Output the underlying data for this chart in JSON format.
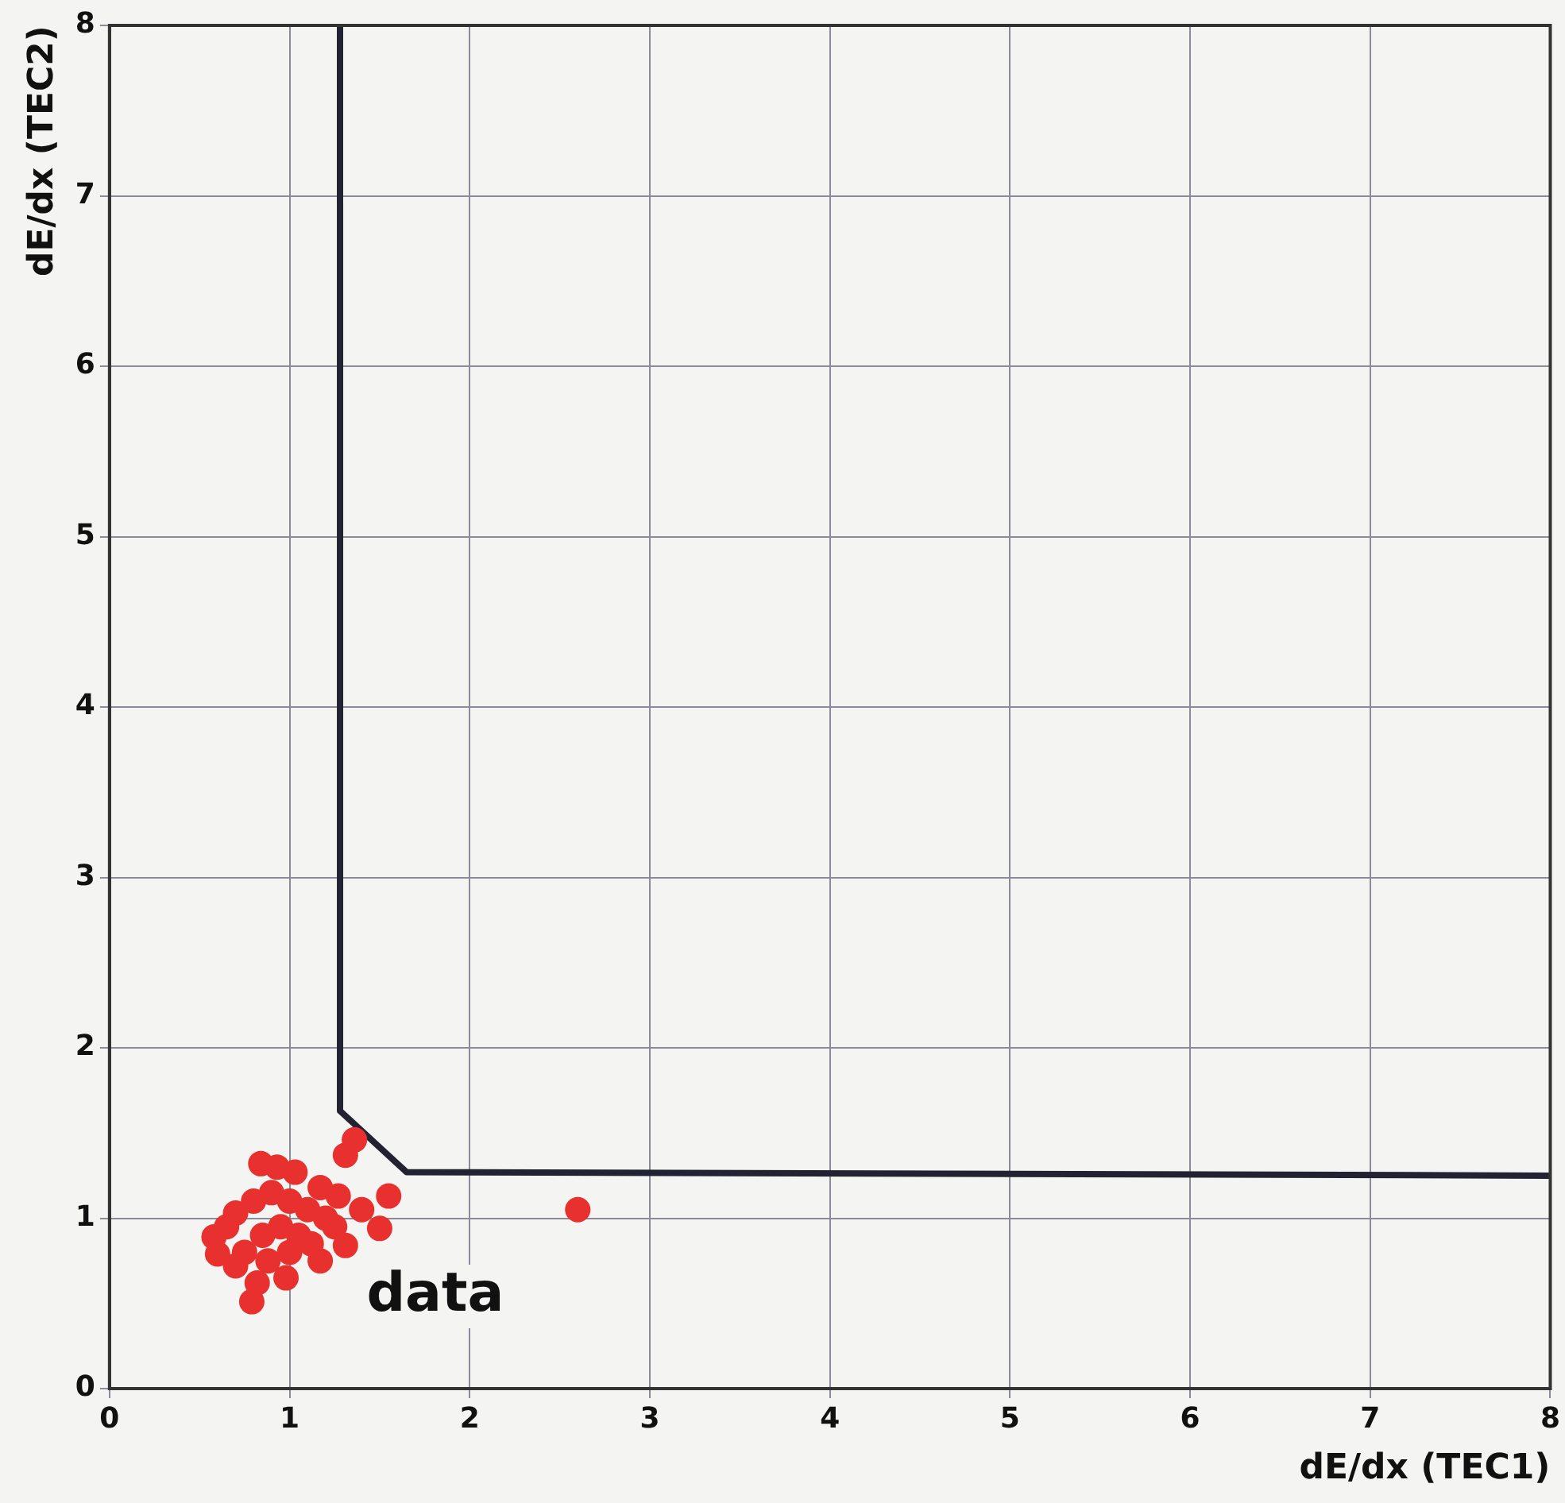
{
  "chart_data": {
    "type": "scatter",
    "xlabel": "dE/dx (TEC1)",
    "ylabel": "dE/dx (TEC2)",
    "xlim": [
      0,
      8
    ],
    "ylim": [
      0,
      8
    ],
    "xticks": [
      0,
      1,
      2,
      3,
      4,
      5,
      6,
      7,
      8
    ],
    "yticks": [
      0,
      1,
      2,
      3,
      4,
      5,
      6,
      7,
      8
    ],
    "grid": true,
    "series": [
      {
        "marker": "circle",
        "color": "#e8302e",
        "x": [
          0.6,
          0.58,
          0.7,
          0.84,
          0.93,
          1.03,
          1.17,
          1.27,
          1.31,
          1.36,
          1.55,
          1.5,
          1.31,
          1.17,
          0.98,
          0.79,
          0.65,
          0.8,
          0.9,
          1.0,
          1.1,
          0.85,
          0.95,
          1.05,
          1.2,
          0.75,
          0.88,
          1.0,
          1.12,
          1.4,
          0.7,
          0.82,
          1.25,
          2.6
        ],
        "values": [
          0.79,
          0.89,
          1.03,
          1.32,
          1.3,
          1.27,
          1.18,
          1.13,
          1.37,
          1.46,
          1.13,
          0.94,
          0.84,
          0.75,
          0.65,
          0.51,
          0.95,
          1.1,
          1.15,
          1.1,
          1.05,
          0.9,
          0.95,
          0.9,
          1.0,
          0.8,
          0.75,
          0.8,
          0.85,
          1.05,
          0.72,
          0.62,
          0.95,
          1.05
        ]
      },
      {
        "type": "line",
        "color": "#222233",
        "x": [
          1.28,
          1.28,
          1.65,
          8
        ],
        "values": [
          8,
          1.63,
          1.27,
          1.25
        ]
      }
    ],
    "annotations": [
      "data"
    ]
  }
}
